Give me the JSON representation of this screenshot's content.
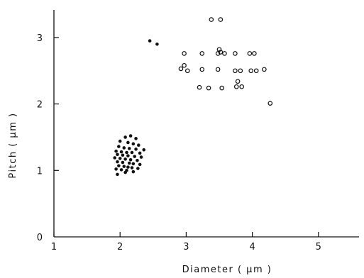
{
  "chart_data": {
    "type": "scatter",
    "title": "",
    "xlabel": "Diameter ( µm )",
    "ylabel": "Pitch ( µm )",
    "xlim": [
      1,
      5.7
    ],
    "ylim": [
      0,
      3.4
    ],
    "xticks": [
      1,
      2,
      3,
      4,
      5
    ],
    "yticks": [
      0,
      1,
      2,
      3
    ],
    "grid": false,
    "series": [
      {
        "marker": "filled-circle",
        "color": "#111111",
        "points": [
          [
            2.45,
            2.95
          ],
          [
            2.56,
            2.9
          ],
          [
            2.08,
            1.5
          ],
          [
            2.16,
            1.52
          ],
          [
            2.24,
            1.48
          ],
          [
            2.0,
            1.44
          ],
          [
            2.12,
            1.42
          ],
          [
            2.2,
            1.4
          ],
          [
            2.28,
            1.38
          ],
          [
            1.98,
            1.36
          ],
          [
            2.06,
            1.34
          ],
          [
            2.14,
            1.33
          ],
          [
            2.24,
            1.32
          ],
          [
            2.36,
            1.31
          ],
          [
            1.94,
            1.29
          ],
          [
            2.02,
            1.28
          ],
          [
            2.1,
            1.27
          ],
          [
            2.18,
            1.27
          ],
          [
            2.3,
            1.26
          ],
          [
            1.96,
            1.24
          ],
          [
            2.04,
            1.23
          ],
          [
            2.12,
            1.22
          ],
          [
            2.22,
            1.21
          ],
          [
            2.32,
            1.2
          ],
          [
            1.92,
            1.19
          ],
          [
            2.0,
            1.18
          ],
          [
            2.08,
            1.17
          ],
          [
            2.16,
            1.16
          ],
          [
            2.26,
            1.15
          ],
          [
            1.96,
            1.13
          ],
          [
            2.04,
            1.12
          ],
          [
            2.14,
            1.11
          ],
          [
            2.2,
            1.1
          ],
          [
            2.3,
            1.09
          ],
          [
            1.98,
            1.07
          ],
          [
            2.06,
            1.06
          ],
          [
            2.12,
            1.05
          ],
          [
            2.18,
            1.04
          ],
          [
            2.27,
            1.03
          ],
          [
            1.94,
            1.02
          ],
          [
            2.02,
            1.01
          ],
          [
            2.1,
            1.0
          ],
          [
            2.2,
            0.98
          ],
          [
            2.08,
            0.97
          ],
          [
            1.96,
            0.94
          ]
        ]
      },
      {
        "marker": "open-circle",
        "color": "#111111",
        "points": [
          [
            3.38,
            3.27
          ],
          [
            3.52,
            3.27
          ],
          [
            3.5,
            2.82
          ],
          [
            3.52,
            2.78
          ],
          [
            2.97,
            2.76
          ],
          [
            3.24,
            2.76
          ],
          [
            3.48,
            2.76
          ],
          [
            3.58,
            2.76
          ],
          [
            3.74,
            2.76
          ],
          [
            3.96,
            2.76
          ],
          [
            4.03,
            2.76
          ],
          [
            2.97,
            2.58
          ],
          [
            2.92,
            2.53
          ],
          [
            3.02,
            2.5
          ],
          [
            3.24,
            2.52
          ],
          [
            3.48,
            2.52
          ],
          [
            3.74,
            2.5
          ],
          [
            3.82,
            2.5
          ],
          [
            3.98,
            2.5
          ],
          [
            4.06,
            2.5
          ],
          [
            4.18,
            2.52
          ],
          [
            3.78,
            2.34
          ],
          [
            3.76,
            2.26
          ],
          [
            3.84,
            2.26
          ],
          [
            3.2,
            2.25
          ],
          [
            3.34,
            2.24
          ],
          [
            3.54,
            2.24
          ],
          [
            4.27,
            2.01
          ]
        ]
      }
    ]
  }
}
